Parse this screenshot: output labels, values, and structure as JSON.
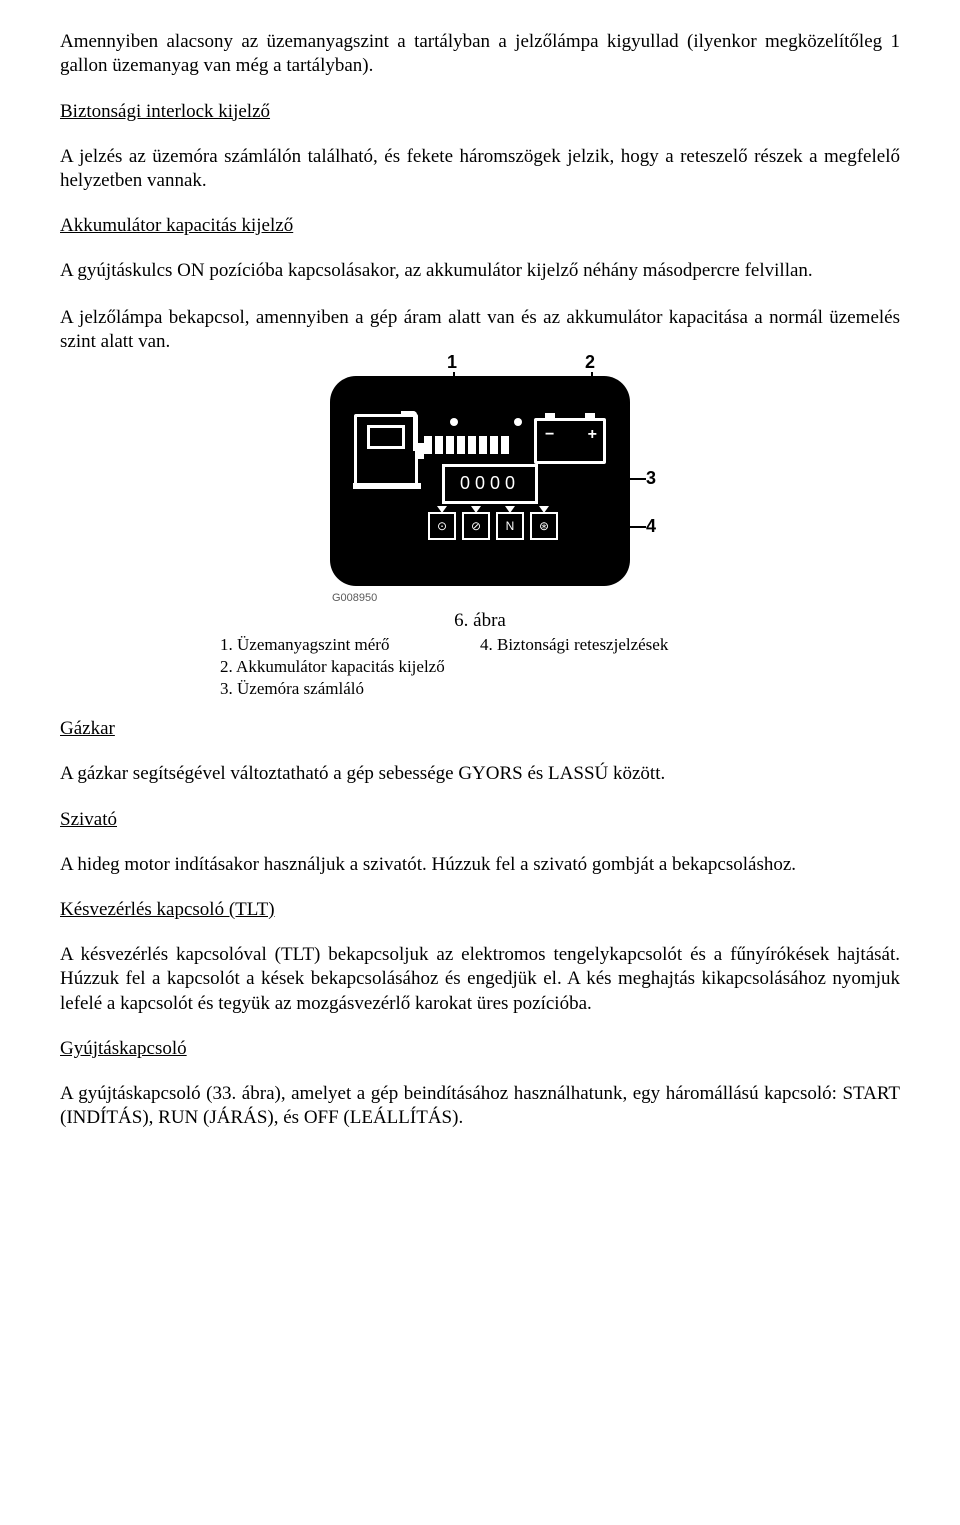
{
  "p1": "Amennyiben alacsony az üzemanyagszint a tartályban a jelzőlámpa kigyullad (ilyenkor megközelítőleg 1 gallon üzemanyag van még a tartályban).",
  "h1": "Biztonsági interlock kijelző",
  "p2": "A jelzés az üzemóra számlálón található, és fekete háromszögek jelzik, hogy a reteszelő részek a megfelelő helyzetben vannak.",
  "h2": "Akkumulátor kapacitás kijelző",
  "p3": "A gyújtáskulcs ON pozícióba kapcsolásakor, az akkumulátor kijelző néhány másodpercre felvillan.",
  "p4": "A jelzőlámpa bekapcsol, amennyiben a gép áram alatt van és az akkumulátor kapacitása a normál üzemelés szint alatt van.",
  "figure": {
    "id": "G008950",
    "caption": "6. ábra",
    "callouts": {
      "n1": "1",
      "n2": "2",
      "n3": "3",
      "n4": "4"
    },
    "lcd": "0000",
    "interlock_labels": [
      "⊙",
      "⊘",
      "N",
      "⊛"
    ],
    "legend": {
      "l1": "1. Üzemanyagszint mérő",
      "l2": "2. Akkumulátor kapacitás kijelző",
      "l3": "3. Üzemóra számláló",
      "r1": "4. Biztonsági reteszjelzések"
    }
  },
  "h3": "Gázkar",
  "p5": "A gázkar segítségével változtatható a gép sebessége GYORS és LASSÚ között.",
  "h4": "Szivató",
  "p6": "A hideg motor indításakor használjuk a szivatót. Húzzuk fel a szivató gombját a bekapcsoláshoz.",
  "h5": "Késvezérlés kapcsoló (TLT)",
  "p7": "A késvezérlés kapcsolóval (TLT) bekapcsoljuk az elektromos tengelykapcsolót és a fűnyírókések hajtását. Húzzuk fel a kapcsolót a kések bekapcsolásához és engedjük el. A kés meghajtás kikapcsolásához nyomjuk lefelé a kapcsolót és tegyük az mozgásvezérlő karokat üres pozícióba.",
  "h6": "Gyújtáskapcsoló",
  "p8": "A gyújtáskapcsoló (33. ábra), amelyet a gép beindításához használhatunk, egy háromállású kapcsoló: START (INDÍTÁS), RUN (JÁRÁS), és OFF (LEÁLLÍTÁS)."
}
